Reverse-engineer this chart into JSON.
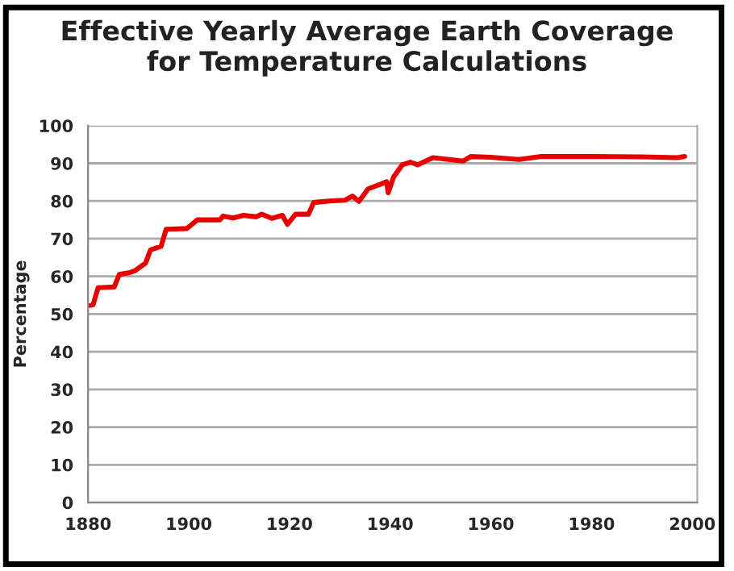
{
  "chart_data": {
    "type": "line",
    "title": "Effective Yearly Average Earth Coverage\nfor Temperature Calculations",
    "ylabel": "Percentage",
    "x": [
      1880,
      1881,
      1882,
      1885.2,
      1886.2,
      1888.3,
      1889.3,
      1891.4,
      1892.4,
      1894.5,
      1895.5,
      1899.6,
      1901.7,
      1906.2,
      1906.8,
      1908.8,
      1910.9,
      1913.4,
      1914.5,
      1916.5,
      1918.6,
      1919.6,
      1921.2,
      1923.8,
      1924.8,
      1927.9,
      1931,
      1932.5,
      1933.8,
      1935.6,
      1938.2,
      1939.3,
      1939.6,
      1940.7,
      1942.4,
      1944,
      1945.5,
      1948.5,
      1954.5,
      1956,
      1960,
      1965.6,
      1970,
      1980,
      1990,
      1997,
      1998.5
    ],
    "series": [
      {
        "color": "#e60000",
        "values": [
          52.2,
          52.5,
          57,
          57.2,
          60.5,
          61,
          61.5,
          63.5,
          67,
          68,
          72.5,
          72.7,
          75,
          75,
          76,
          75.5,
          76.2,
          75.8,
          76.5,
          75.4,
          76.2,
          73.8,
          76.5,
          76.5,
          79.6,
          80,
          80.2,
          81.3,
          79.9,
          83.2,
          84.5,
          85.1,
          82.2,
          86.4,
          89.6,
          90.3,
          89.6,
          91.5,
          90.6,
          91.8,
          91.6,
          91,
          91.8,
          91.8,
          91.7,
          91.5,
          91.8
        ]
      }
    ],
    "xlim": [
      1880,
      2001
    ],
    "xticks": [
      1880,
      1900,
      1920,
      1940,
      1960,
      1980,
      2000
    ],
    "ylim": [
      0,
      100
    ],
    "yticks": [
      0,
      10,
      20,
      30,
      40,
      50,
      60,
      70,
      80,
      90,
      100
    ],
    "grid": "y",
    "legend": false,
    "marker": "none",
    "line_style": "solid"
  }
}
